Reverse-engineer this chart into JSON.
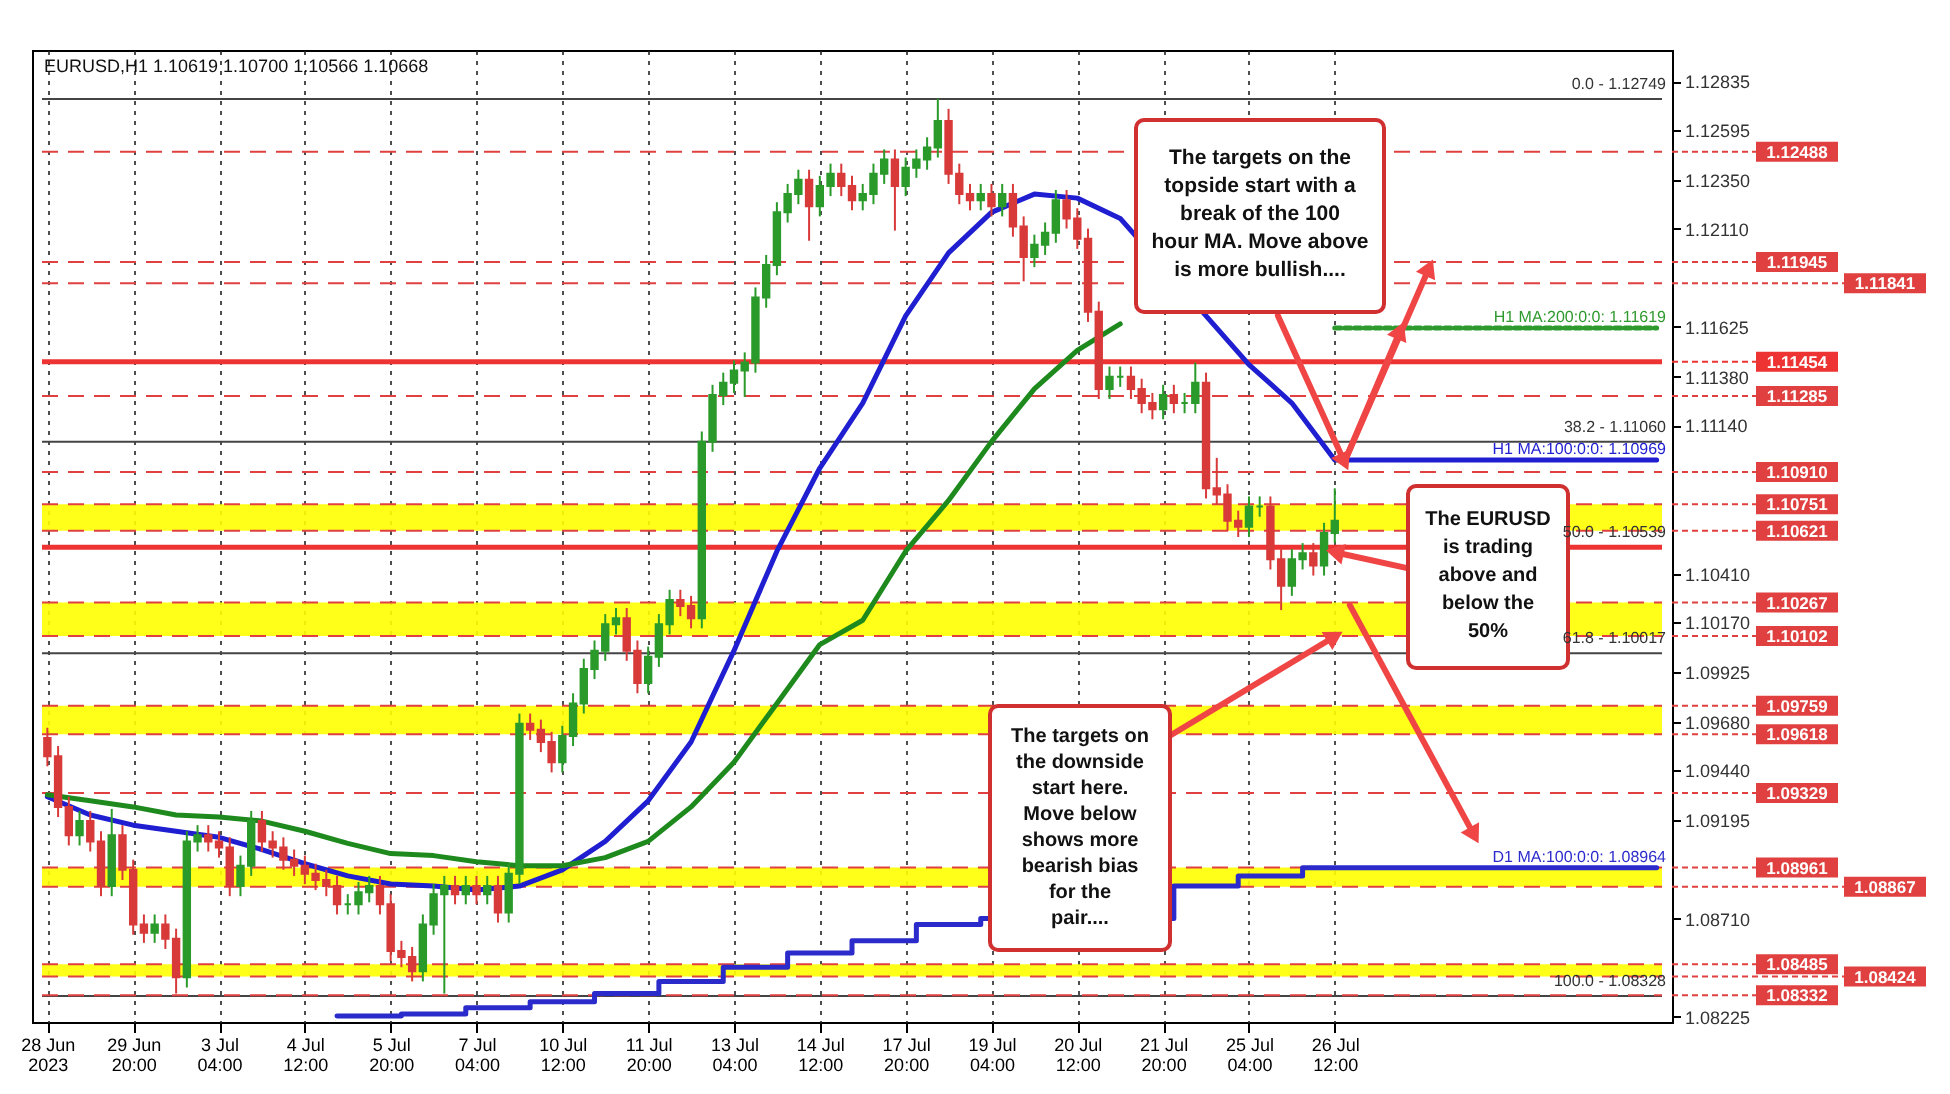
{
  "chart_data": {
    "type": "candlestick",
    "title": "EURUSD,H1  1.10619 1.10700 1.10566 1.10668",
    "categories": [
      "28 Jun 2023",
      null,
      null,
      null,
      null,
      null,
      null,
      null,
      "29 Jun 20:00",
      null,
      null,
      null,
      null,
      null,
      null,
      null,
      "3 Jul 04:00",
      null,
      null,
      null,
      null,
      null,
      null,
      null,
      "4 Jul 12:00",
      null,
      null,
      null,
      null,
      null,
      null,
      null,
      "5 Jul 20:00",
      null,
      null,
      null,
      null,
      null,
      null,
      null,
      "7 Jul 04:00",
      null,
      null,
      null,
      null,
      null,
      null,
      null,
      "10 Jul 12:00",
      null,
      null,
      null,
      null,
      null,
      null,
      null,
      "11 Jul 20:00",
      null,
      null,
      null,
      null,
      null,
      null,
      null,
      "13 Jul 04:00",
      null,
      null,
      null,
      null,
      null,
      null,
      null,
      "14 Jul 12:00",
      null,
      null,
      null,
      null,
      null,
      null,
      null,
      "17 Jul 20:00",
      null,
      null,
      null,
      null,
      null,
      null,
      null,
      "19 Jul 04:00",
      null,
      null,
      null,
      null,
      null,
      null,
      null,
      "20 Jul 12:00",
      null,
      null,
      null,
      null,
      null,
      null,
      null,
      "21 Jul 20:00",
      null,
      null,
      null,
      null,
      null,
      null,
      null,
      "25 Jul 04:00",
      null,
      null,
      null,
      null,
      null,
      null,
      null,
      "26 Jul 12:00",
      null,
      null,
      null,
      null,
      null,
      null,
      null,
      null,
      null,
      null,
      null,
      null,
      null,
      null,
      null,
      null,
      null,
      null,
      null,
      null,
      null,
      null,
      null,
      null,
      null,
      null,
      null,
      null,
      null,
      null
    ],
    "ohlc": [
      [
        1.096,
        1.0965,
        1.0946,
        1.0951
      ],
      [
        1.0951,
        1.0956,
        1.0921,
        1.0926
      ],
      [
        1.0926,
        1.0931,
        1.0907,
        1.0912
      ],
      [
        1.0912,
        1.0924,
        1.0907,
        1.0919
      ],
      [
        1.0919,
        1.0924,
        1.0904,
        1.0909
      ],
      [
        1.0909,
        1.0914,
        1.0882,
        1.0887
      ],
      [
        1.0887,
        1.0925,
        1.0882,
        1.0912
      ],
      [
        1.0912,
        1.0917,
        1.089,
        1.0895
      ],
      [
        1.0895,
        1.09,
        1.0863,
        1.0868
      ],
      [
        1.0868,
        1.0873,
        1.0859,
        1.0864
      ],
      [
        1.0864,
        1.0873,
        1.0859,
        1.0868
      ],
      [
        1.0868,
        1.0873,
        1.0856,
        1.0861
      ],
      [
        1.0861,
        1.0866,
        1.0834,
        1.0842
      ],
      [
        1.0842,
        1.0914,
        1.0837,
        1.0909
      ],
      [
        1.0909,
        1.0917,
        1.0904,
        1.0912
      ],
      [
        1.0912,
        1.0917,
        1.0904,
        1.0909
      ],
      [
        1.0909,
        1.0914,
        1.0901,
        1.0906
      ],
      [
        1.0906,
        1.0911,
        1.0882,
        1.0887
      ],
      [
        1.0887,
        1.0902,
        1.0882,
        1.0897
      ],
      [
        1.0897,
        1.0924,
        1.0892,
        1.0919
      ],
      [
        1.0919,
        1.0924,
        1.0904,
        1.0909
      ],
      [
        1.0909,
        1.0914,
        1.0901,
        1.0906
      ],
      [
        1.0906,
        1.0911,
        1.0895,
        1.09
      ],
      [
        1.09,
        1.0905,
        1.0892,
        1.0897
      ],
      [
        1.0897,
        1.0902,
        1.0888,
        1.0893
      ],
      [
        1.0893,
        1.0898,
        1.0885,
        1.089
      ],
      [
        1.089,
        1.0895,
        1.0882,
        1.0887
      ],
      [
        1.0887,
        1.0892,
        1.0873,
        1.0878
      ],
      [
        1.0878,
        1.0883,
        1.0873,
        1.0878
      ],
      [
        1.0878,
        1.0889,
        1.0873,
        1.0884
      ],
      [
        1.0884,
        1.0892,
        1.0879,
        1.0887
      ],
      [
        1.0887,
        1.0892,
        1.0873,
        1.0878
      ],
      [
        1.0878,
        1.0883,
        1.085,
        1.0855
      ],
      [
        1.0855,
        1.086,
        1.0847,
        1.0852
      ],
      [
        1.0852,
        1.0857,
        1.084,
        1.0845
      ],
      [
        1.0845,
        1.0873,
        1.084,
        1.0868
      ],
      [
        1.0868,
        1.0888,
        1.0863,
        1.0883
      ],
      [
        1.0883,
        1.0892,
        1.0834,
        1.0887
      ],
      [
        1.0887,
        1.0892,
        1.0878,
        1.0883
      ],
      [
        1.0883,
        1.0892,
        1.0878,
        1.0887
      ],
      [
        1.0887,
        1.0892,
        1.0878,
        1.0883
      ],
      [
        1.0883,
        1.0892,
        1.0878,
        1.0887
      ],
      [
        1.0887,
        1.0892,
        1.0869,
        1.0874
      ],
      [
        1.0874,
        1.0898,
        1.0869,
        1.0893
      ],
      [
        1.0893,
        1.0972,
        1.0888,
        1.0967
      ],
      [
        1.0967,
        1.0972,
        1.0959,
        1.0964
      ],
      [
        1.0964,
        1.0969,
        1.0953,
        1.0958
      ],
      [
        1.0958,
        1.0963,
        1.0943,
        1.0948
      ],
      [
        1.0948,
        1.0966,
        1.0943,
        1.0961
      ],
      [
        1.0961,
        1.0982,
        1.0956,
        1.0977
      ],
      [
        1.0977,
        1.0999,
        1.0972,
        1.0994
      ],
      [
        1.0994,
        1.1008,
        1.0989,
        1.1003
      ],
      [
        1.1003,
        1.1021,
        1.0998,
        1.1016
      ],
      [
        1.1016,
        1.1024,
        1.1011,
        1.1019
      ],
      [
        1.1019,
        1.1024,
        1.0998,
        1.1003
      ],
      [
        1.1003,
        1.1008,
        1.0982,
        1.0987
      ],
      [
        1.0987,
        1.1005,
        1.0982,
        1.1
      ],
      [
        1.1,
        1.1021,
        1.0995,
        1.1016
      ],
      [
        1.1016,
        1.1033,
        1.1011,
        1.1028
      ],
      [
        1.1028,
        1.1033,
        1.102,
        1.1025
      ],
      [
        1.1025,
        1.103,
        1.1014,
        1.1019
      ],
      [
        1.1019,
        1.1111,
        1.1014,
        1.1106
      ],
      [
        1.1106,
        1.1134,
        1.1101,
        1.1129
      ],
      [
        1.1129,
        1.114,
        1.1124,
        1.1135
      ],
      [
        1.1135,
        1.1146,
        1.113,
        1.1141
      ],
      [
        1.1141,
        1.115,
        1.1128,
        1.1145
      ],
      [
        1.1145,
        1.1182,
        1.114,
        1.1177
      ],
      [
        1.1177,
        1.1198,
        1.1172,
        1.1193
      ],
      [
        1.1193,
        1.1224,
        1.1188,
        1.1219
      ],
      [
        1.1219,
        1.1233,
        1.1214,
        1.1228
      ],
      [
        1.1228,
        1.124,
        1.1223,
        1.1235
      ],
      [
        1.1235,
        1.124,
        1.1205,
        1.1222
      ],
      [
        1.1222,
        1.1237,
        1.1217,
        1.1232
      ],
      [
        1.1232,
        1.1243,
        1.1227,
        1.1238
      ],
      [
        1.1238,
        1.1243,
        1.1227,
        1.1232
      ],
      [
        1.1232,
        1.1237,
        1.122,
        1.1225
      ],
      [
        1.1225,
        1.1233,
        1.122,
        1.1228
      ],
      [
        1.1228,
        1.1243,
        1.1223,
        1.1238
      ],
      [
        1.1238,
        1.125,
        1.1233,
        1.1245
      ],
      [
        1.1245,
        1.125,
        1.121,
        1.1232
      ],
      [
        1.1232,
        1.1246,
        1.1227,
        1.1241
      ],
      [
        1.1241,
        1.125,
        1.1236,
        1.1245
      ],
      [
        1.1245,
        1.1256,
        1.124,
        1.1251
      ],
      [
        1.1251,
        1.1275,
        1.1246,
        1.1264
      ],
      [
        1.1264,
        1.127,
        1.1233,
        1.1238
      ],
      [
        1.1238,
        1.1243,
        1.1223,
        1.1228
      ],
      [
        1.1228,
        1.1233,
        1.122,
        1.1225
      ],
      [
        1.1225,
        1.1233,
        1.122,
        1.1228
      ],
      [
        1.1228,
        1.1233,
        1.1217,
        1.1222
      ],
      [
        1.1222,
        1.1233,
        1.1217,
        1.1228
      ],
      [
        1.1228,
        1.1233,
        1.1207,
        1.1212
      ],
      [
        1.1212,
        1.1217,
        1.1185,
        1.1197
      ],
      [
        1.1197,
        1.1208,
        1.1192,
        1.1203
      ],
      [
        1.1203,
        1.1214,
        1.1198,
        1.1209
      ],
      [
        1.1209,
        1.123,
        1.1204,
        1.1225
      ],
      [
        1.1225,
        1.123,
        1.1211,
        1.1216
      ],
      [
        1.1216,
        1.1221,
        1.1201,
        1.1206
      ],
      [
        1.1206,
        1.1211,
        1.1165,
        1.117
      ],
      [
        1.117,
        1.1175,
        1.1127,
        1.1132
      ],
      [
        1.1132,
        1.1143,
        1.1127,
        1.1138
      ],
      [
        1.1138,
        1.1143,
        1.1133,
        1.1138
      ],
      [
        1.1138,
        1.1143,
        1.1127,
        1.1132
      ],
      [
        1.1132,
        1.1137,
        1.112,
        1.1125
      ],
      [
        1.1125,
        1.113,
        1.1117,
        1.1122
      ],
      [
        1.1122,
        1.1134,
        1.1117,
        1.1129
      ],
      [
        1.1129,
        1.1134,
        1.112,
        1.1125
      ],
      [
        1.1125,
        1.113,
        1.112,
        1.1125
      ],
      [
        1.1125,
        1.1145,
        1.112,
        1.1135
      ],
      [
        1.1135,
        1.114,
        1.1078,
        1.1083
      ],
      [
        1.1083,
        1.1098,
        1.1075,
        1.108
      ],
      [
        1.108,
        1.1085,
        1.1062,
        1.1067
      ],
      [
        1.1067,
        1.1072,
        1.1059,
        1.1064
      ],
      [
        1.1064,
        1.1079,
        1.1059,
        1.1074
      ],
      [
        1.1074,
        1.1079,
        1.1069,
        1.1074
      ],
      [
        1.1074,
        1.1079,
        1.1043,
        1.1048
      ],
      [
        1.1048,
        1.1053,
        1.1023,
        1.1035
      ],
      [
        1.1035,
        1.1053,
        1.103,
        1.1048
      ],
      [
        1.1048,
        1.1056,
        1.1043,
        1.1051
      ],
      [
        1.1051,
        1.1056,
        1.104,
        1.1045
      ],
      [
        1.1045,
        1.1066,
        1.104,
        1.1061
      ],
      [
        1.1061,
        1.1083,
        1.1056,
        1.1067
      ],
      null,
      null,
      null,
      null,
      null,
      null,
      null,
      null,
      null,
      null,
      null,
      null,
      null,
      null,
      null,
      null,
      null,
      null,
      null,
      null,
      null,
      null,
      null,
      null,
      null,
      null,
      null,
      null,
      null,
      null
    ],
    "colors": [
      "#d83a3a",
      "#d83a3a",
      "#d83a3a",
      "#2a9a2a",
      "#d83a3a",
      "#d83a3a",
      "#2a9a2a",
      "#d83a3a",
      "#d83a3a",
      "#d83a3a",
      "#2a9a2a",
      "#d83a3a",
      "#d83a3a",
      "#2a9a2a",
      "#2a9a2a",
      "#d83a3a",
      "#d83a3a",
      "#d83a3a",
      "#2a9a2a",
      "#2a9a2a",
      "#d83a3a",
      "#d83a3a",
      "#d83a3a",
      "#d83a3a",
      "#d83a3a",
      "#d83a3a",
      "#d83a3a",
      "#d83a3a",
      "#2a9a2a",
      "#2a9a2a",
      "#2a9a2a",
      "#d83a3a",
      "#d83a3a",
      "#d83a3a",
      "#d83a3a",
      "#2a9a2a",
      "#2a9a2a",
      "#2a9a2a",
      "#d83a3a",
      "#2a9a2a",
      "#d83a3a",
      "#2a9a2a",
      "#d83a3a",
      "#2a9a2a",
      "#2a9a2a",
      "#d83a3a",
      "#d83a3a",
      "#d83a3a",
      "#2a9a2a",
      "#2a9a2a",
      "#2a9a2a",
      "#2a9a2a",
      "#2a9a2a",
      "#2a9a2a",
      "#d83a3a",
      "#d83a3a",
      "#2a9a2a",
      "#2a9a2a",
      "#2a9a2a",
      "#d83a3a",
      "#d83a3a",
      "#2a9a2a",
      "#2a9a2a",
      "#2a9a2a",
      "#2a9a2a",
      "#2a9a2a",
      "#2a9a2a",
      "#2a9a2a",
      "#2a9a2a",
      "#2a9a2a",
      "#2a9a2a",
      "#d83a3a",
      "#2a9a2a",
      "#2a9a2a",
      "#d83a3a",
      "#d83a3a",
      "#2a9a2a",
      "#2a9a2a",
      "#2a9a2a",
      "#d83a3a",
      "#2a9a2a",
      "#2a9a2a",
      "#2a9a2a",
      "#2a9a2a",
      "#d83a3a",
      "#d83a3a",
      "#d83a3a",
      "#2a9a2a",
      "#d83a3a",
      "#2a9a2a",
      "#d83a3a",
      "#d83a3a",
      "#2a9a2a",
      "#2a9a2a",
      "#2a9a2a",
      "#d83a3a",
      "#d83a3a",
      "#d83a3a",
      "#d83a3a",
      "#2a9a2a",
      "#2a9a2a",
      "#d83a3a",
      "#d83a3a",
      "#d83a3a",
      "#2a9a2a",
      "#d83a3a",
      "#2a9a2a",
      "#2a9a2a",
      "#d83a3a",
      "#d83a3a",
      "#d83a3a",
      "#d83a3a",
      "#2a9a2a",
      "#2a9a2a",
      "#d83a3a",
      "#d83a3a",
      "#2a9a2a",
      "#2a9a2a",
      "#d83a3a",
      "#2a9a2a",
      "#2a9a2a",
      null,
      null,
      null,
      null,
      null,
      null,
      null,
      null,
      null,
      null,
      null,
      null,
      null,
      null,
      null,
      null,
      null,
      null,
      null,
      null,
      null,
      null,
      null,
      null,
      null,
      null,
      null,
      null,
      null,
      null
    ],
    "series": [
      {
        "type": "line",
        "name": "H1 MA:100:0:0: 1.10969",
        "color": "#1f1fd1",
        "values": [
          1.0931,
          null,
          null,
          null,
          1.0922,
          null,
          null,
          null,
          1.0917,
          null,
          null,
          null,
          1.0914,
          null,
          null,
          null,
          1.0911,
          null,
          null,
          null,
          1.0905,
          null,
          null,
          null,
          1.0898,
          null,
          null,
          null,
          1.0892,
          null,
          null,
          null,
          1.0888,
          null,
          null,
          null,
          1.0887,
          null,
          null,
          null,
          1.0885,
          null,
          null,
          null,
          1.0887,
          null,
          null,
          null,
          1.0895,
          null,
          null,
          null,
          1.0909,
          null,
          null,
          null,
          1.0929,
          null,
          null,
          null,
          1.0958,
          null,
          null,
          null,
          1.1003,
          null,
          null,
          null,
          1.1052,
          null,
          null,
          null,
          1.1093,
          null,
          null,
          null,
          1.1125,
          null,
          null,
          null,
          1.1168,
          null,
          null,
          null,
          1.1199,
          null,
          null,
          null,
          1.1219,
          null,
          null,
          null,
          1.1228,
          null,
          null,
          null,
          1.1226,
          null,
          null,
          null,
          1.1216,
          null,
          null,
          null,
          null,
          null,
          null,
          null,
          null,
          null,
          null,
          null,
          1.1144,
          null,
          null,
          null,
          1.1125,
          null,
          null,
          null,
          1.1097,
          null,
          null,
          null,
          null,
          null,
          null,
          null,
          null,
          null,
          null,
          null,
          null,
          null,
          null,
          null,
          null,
          null,
          null,
          null,
          null,
          null,
          null,
          null,
          null,
          null,
          null,
          null,
          null,
          null,
          1.1097
        ]
      },
      {
        "type": "line",
        "color": "#1e8a1e",
        "values": [
          1.0932,
          null,
          null,
          null,
          1.0929,
          null,
          null,
          null,
          1.0926,
          null,
          null,
          null,
          1.0922,
          null,
          null,
          null,
          1.0921,
          null,
          null,
          null,
          1.0919,
          null,
          null,
          null,
          1.0914,
          null,
          null,
          null,
          1.0908,
          null,
          null,
          null,
          1.0903,
          null,
          null,
          null,
          1.0902,
          null,
          null,
          null,
          1.0899,
          null,
          null,
          null,
          1.0897,
          null,
          null,
          null,
          1.0897,
          null,
          null,
          null,
          1.0901,
          null,
          null,
          null,
          1.0909,
          null,
          null,
          null,
          1.0926,
          null,
          null,
          null,
          1.0948,
          null,
          null,
          null,
          1.0977,
          null,
          null,
          null,
          1.1006,
          null,
          null,
          null,
          1.1018,
          null,
          null,
          null,
          1.1052,
          null,
          null,
          null,
          1.1077,
          null,
          null,
          null,
          1.1106,
          null,
          null,
          null,
          1.1132,
          null,
          null,
          null,
          1.1151,
          null,
          null,
          null,
          1.1164,
          null,
          null,
          null,
          null,
          null,
          null,
          null,
          null,
          null,
          null,
          null,
          null,
          null,
          null,
          null,
          null,
          null,
          null,
          null,
          null,
          null,
          null,
          null,
          null,
          null,
          null,
          null,
          null,
          null,
          null,
          null,
          null,
          null,
          null,
          null,
          null,
          null,
          null,
          null,
          null,
          null,
          null,
          null,
          null,
          null,
          null,
          null,
          null,
          null,
          null
        ]
      },
      {
        "type": "line",
        "name": "H1 MA:200:0:0: 1.11619",
        "color": "#2e9a2e",
        "line_style": "dotted",
        "values": [
          null,
          null,
          null,
          null,
          null,
          null,
          null,
          null,
          null,
          null,
          null,
          null,
          null,
          null,
          null,
          null,
          null,
          null,
          null,
          null,
          null,
          null,
          null,
          null,
          null,
          null,
          null,
          null,
          null,
          null,
          null,
          null,
          null,
          null,
          null,
          null,
          null,
          null,
          null,
          null,
          null,
          null,
          null,
          null,
          null,
          null,
          null,
          null,
          null,
          null,
          null,
          null,
          null,
          null,
          null,
          null,
          null,
          null,
          null,
          null,
          null,
          null,
          null,
          null,
          null,
          null,
          null,
          null,
          null,
          null,
          null,
          null,
          null,
          null,
          null,
          null,
          null,
          null,
          null,
          null,
          null,
          null,
          null,
          null,
          null,
          null,
          null,
          null,
          null,
          null,
          null,
          null,
          null,
          null,
          null,
          null,
          null,
          null,
          null,
          null,
          null,
          null,
          null,
          null,
          null,
          null,
          null,
          null,
          null,
          null,
          null,
          null,
          null,
          null,
          null,
          null,
          null,
          null,
          null,
          null,
          1.1162,
          null,
          null,
          null,
          null,
          null,
          null,
          null,
          null,
          null,
          null,
          null,
          null,
          null,
          null,
          null,
          null,
          null,
          null,
          null,
          null,
          null,
          null,
          null,
          null,
          null,
          null,
          null,
          null,
          null,
          1.1162
        ]
      },
      {
        "type": "step",
        "name": "D1 MA:100:0:0: 1.08964",
        "color": "#2b2bcc",
        "values": [
          null,
          null,
          null,
          null,
          null,
          null,
          null,
          null,
          null,
          null,
          null,
          null,
          null,
          null,
          null,
          null,
          null,
          null,
          null,
          null,
          null,
          null,
          null,
          null,
          null,
          null,
          null,
          1.0823,
          null,
          null,
          null,
          null,
          null,
          1.0824,
          null,
          null,
          null,
          null,
          null,
          1.0827,
          null,
          null,
          null,
          null,
          null,
          1.083,
          null,
          null,
          null,
          null,
          null,
          1.0834,
          null,
          null,
          null,
          null,
          null,
          1.084,
          null,
          null,
          null,
          null,
          null,
          1.0847,
          null,
          null,
          null,
          null,
          null,
          1.0854,
          null,
          null,
          null,
          null,
          null,
          1.086,
          null,
          null,
          null,
          null,
          null,
          1.0868,
          null,
          null,
          null,
          null,
          null,
          1.0871,
          null,
          null,
          null,
          null,
          null,
          null,
          null,
          null,
          null,
          null,
          null,
          null,
          null,
          null,
          null,
          null,
          null,
          1.0887,
          null,
          null,
          null,
          null,
          null,
          1.0892,
          null,
          null,
          null,
          null,
          null,
          1.0896,
          null,
          null,
          null,
          null,
          null,
          null,
          null,
          null,
          null,
          null,
          null,
          null,
          null,
          null,
          null,
          null,
          null,
          null,
          null,
          null,
          null,
          null,
          null,
          null,
          null,
          null,
          null,
          null,
          null,
          null,
          null,
          null,
          1.0896
        ]
      }
    ],
    "ylim": [
      1.082,
      1.1299
    ],
    "yticks": [
      1.12835,
      1.12595,
      {
        "value": 1.1235,
        "label": "1.12350"
      },
      {
        "value": 1.1211,
        "label": "1.12110"
      },
      1.11625,
      {
        "value": 1.1138,
        "label": "1.11380"
      },
      {
        "value": 1.1114,
        "label": "1.11140"
      },
      {
        "value": 1.1041,
        "label": "1.10410"
      },
      {
        "value": 1.1017,
        "label": "1.10170"
      },
      1.09925,
      {
        "value": 1.0968,
        "label": "1.09680"
      },
      {
        "value": 1.0944,
        "label": "1.09440"
      },
      1.09195,
      {
        "value": 1.0871,
        "label": "1.08710"
      },
      1.08225
    ],
    "grid": "x",
    "bands": [
      {
        "axis": "y",
        "from": 1.10621,
        "to": 1.10751,
        "color": "#ffff00"
      },
      {
        "axis": "y",
        "from": 1.10102,
        "to": 1.10267,
        "color": "#ffff00"
      },
      {
        "axis": "y",
        "from": 1.09618,
        "to": 1.09759,
        "color": "#ffff00"
      },
      {
        "axis": "y",
        "from": 1.08867,
        "to": 1.08961,
        "color": "#ffff00"
      },
      {
        "axis": "y",
        "from": 1.08424,
        "to": 1.08485,
        "color": "#ffff00"
      }
    ],
    "ref_lines": [
      {
        "axis": "y",
        "value": 1.12749,
        "color": "#444444",
        "line_style": "solid"
      },
      {
        "axis": "y",
        "value": 1.1106,
        "color": "#444444",
        "line_style": "solid"
      },
      {
        "axis": "y",
        "value": 1.10017,
        "color": "#444444",
        "line_style": "solid"
      },
      {
        "axis": "y",
        "value": 1.08328,
        "color": "#444444",
        "line_style": "solid"
      },
      {
        "axis": "y",
        "value": 1.11454,
        "label": "1.11454",
        "color": "#ee3333",
        "line_style": "solid"
      },
      {
        "axis": "y",
        "value": 1.10539,
        "color": "#ee3333",
        "line_style": "solid"
      },
      {
        "axis": "y",
        "value": 1.12488,
        "label": "1.12488",
        "color": "#e0403f",
        "line_style": "dashed"
      },
      {
        "axis": "y",
        "value": 1.11945,
        "label": "1.11945",
        "color": "#e0403f",
        "line_style": "dashed"
      },
      {
        "axis": "y",
        "value": 1.11841,
        "label": "1.11841",
        "color": "#e0403f",
        "line_style": "dashed"
      },
      {
        "axis": "y",
        "value": 1.11285,
        "label": "1.11285",
        "color": "#e0403f",
        "line_style": "dashed"
      },
      {
        "axis": "y",
        "value": 1.1091,
        "label": "1.10910",
        "color": "#e0403f",
        "line_style": "dashed"
      },
      {
        "axis": "y",
        "value": 1.10751,
        "label": "1.10751",
        "color": "#e0403f",
        "line_style": "dashed"
      },
      {
        "axis": "y",
        "value": 1.10621,
        "label": "1.10621",
        "color": "#e0403f",
        "line_style": "dashed"
      },
      {
        "axis": "y",
        "value": 1.10267,
        "label": "1.10267",
        "color": "#e0403f",
        "line_style": "dashed"
      },
      {
        "axis": "y",
        "value": 1.10102,
        "label": "1.10102",
        "color": "#e0403f",
        "line_style": "dashed"
      },
      {
        "axis": "y",
        "value": 1.09759,
        "label": "1.09759",
        "color": "#e0403f",
        "line_style": "dashed"
      },
      {
        "axis": "y",
        "value": 1.09618,
        "label": "1.09618",
        "color": "#e0403f",
        "line_style": "dashed"
      },
      {
        "axis": "y",
        "value": 1.09329,
        "label": "1.09329",
        "color": "#e0403f",
        "line_style": "dashed"
      },
      {
        "axis": "y",
        "value": 1.08961,
        "label": "1.08961",
        "color": "#e0403f",
        "line_style": "dashed"
      },
      {
        "axis": "y",
        "value": 1.08867,
        "label": "1.08867",
        "color": "#e0403f",
        "line_style": "dashed"
      },
      {
        "axis": "y",
        "value": 1.08485,
        "label": "1.08485",
        "color": "#e0403f",
        "line_style": "dashed"
      },
      {
        "axis": "y",
        "value": 1.08424,
        "label": "1.08424",
        "color": "#e0403f",
        "line_style": "dashed"
      },
      {
        "axis": "y",
        "value": 1.08332,
        "label": "1.08332",
        "color": "#e0403f",
        "line_style": "dashed"
      }
    ],
    "annotations": [
      "The targets on the topside start with a break of the 100 hour MA. Move above is more bullish....",
      {
        "text": "The EURUSD is trading above and below the 50%",
        "x": "26 Jul 12:00",
        "y": 1.10515
      },
      {
        "text": "The targets on the downside start here. Move below shows more bearish bias for the pair....",
        "x": "26 Jul 12:00",
        "y": 1.101
      },
      {
        "text": "0.0 - 1.12749",
        "y": 1.12749
      },
      {
        "text": "38.2 - 1.11060",
        "y": 1.1106
      },
      {
        "text": "50.0 - 1.10539",
        "y": 1.10539
      },
      {
        "text": "61.8 - 1.10017",
        "y": 1.10017
      },
      {
        "text": "100.0 - 1.08328",
        "y": 1.08328
      }
    ]
  }
}
